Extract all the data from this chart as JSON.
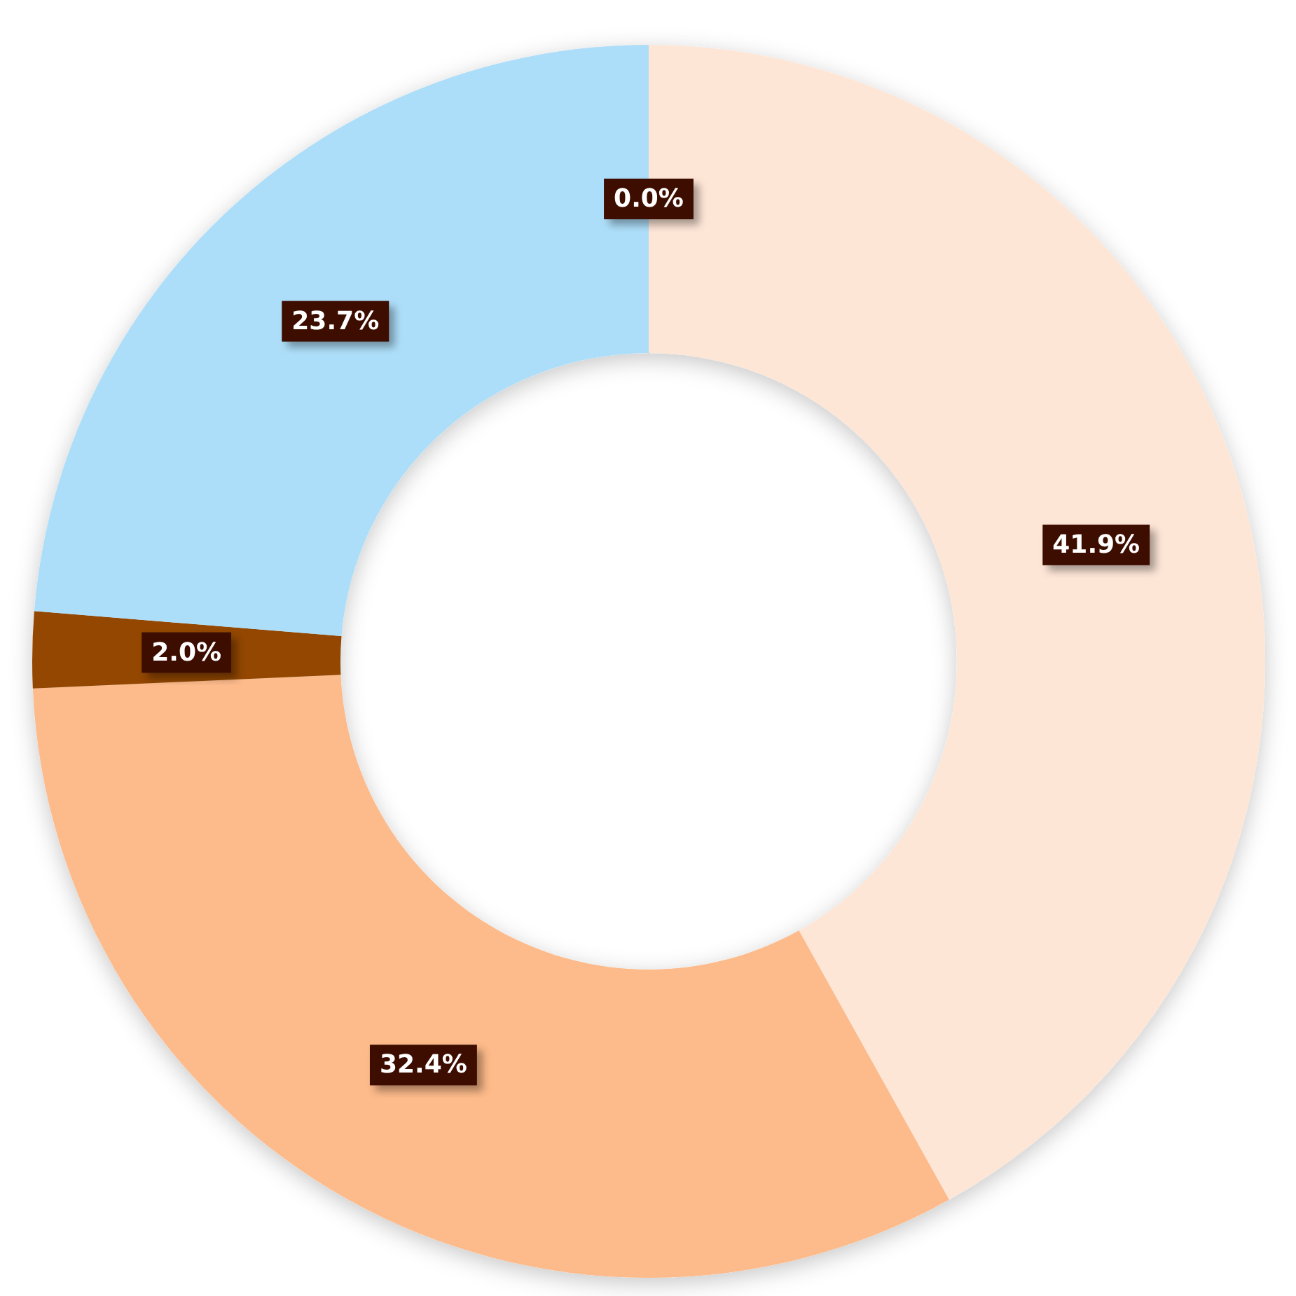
{
  "chart_data": {
    "type": "donut",
    "categories": [
      null,
      null,
      null,
      null,
      null
    ],
    "values": [
      0.0,
      41.9,
      32.4,
      2.0,
      23.7
    ],
    "colors": [
      "#e07b39",
      "#fee6d7",
      "#fdba8a",
      "#934700",
      "#addef9"
    ],
    "value_labels": [
      "0.0%",
      "41.9%",
      "32.4%",
      "2.0%",
      "23.7%"
    ]
  }
}
